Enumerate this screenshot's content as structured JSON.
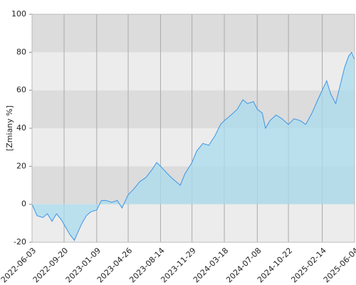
{
  "chart_data": {
    "type": "area",
    "y_label": "[Zmiany %]",
    "x": [
      "2022-06-03",
      "2022-06-20",
      "2022-07-10",
      "2022-07-25",
      "2022-08-10",
      "2022-08-25",
      "2022-09-10",
      "2022-09-25",
      "2022-10-10",
      "2022-10-25",
      "2022-11-05",
      "2022-11-20",
      "2022-12-05",
      "2022-12-20",
      "2023-01-09",
      "2023-01-25",
      "2023-02-10",
      "2023-03-01",
      "2023-03-20",
      "2023-04-05",
      "2023-04-26",
      "2023-05-15",
      "2023-06-05",
      "2023-06-25",
      "2023-07-15",
      "2023-08-01",
      "2023-08-14",
      "2023-09-01",
      "2023-09-20",
      "2023-10-05",
      "2023-10-20",
      "2023-11-05",
      "2023-11-29",
      "2023-12-15",
      "2024-01-05",
      "2024-01-25",
      "2024-02-15",
      "2024-03-05",
      "2024-03-18",
      "2024-04-10",
      "2024-05-01",
      "2024-05-20",
      "2024-06-05",
      "2024-06-25",
      "2024-07-08",
      "2024-07-25",
      "2024-08-05",
      "2024-08-20",
      "2024-09-10",
      "2024-09-30",
      "2024-10-22",
      "2024-11-10",
      "2024-12-01",
      "2024-12-20",
      "2025-01-10",
      "2025-01-30",
      "2025-02-14",
      "2025-03-01",
      "2025-03-15",
      "2025-04-01",
      "2025-04-15",
      "2025-05-01",
      "2025-05-15",
      "2025-05-25",
      "2025-06-04"
    ],
    "values": [
      0,
      -6,
      -7,
      -5,
      -9,
      -5,
      -8,
      -12,
      -16,
      -19,
      -15,
      -10,
      -6,
      -4,
      -3,
      2,
      2,
      1,
      2,
      -2,
      5,
      8,
      12,
      14,
      18,
      22,
      20,
      17,
      14,
      12,
      10,
      16,
      22,
      28,
      32,
      31,
      36,
      42,
      44,
      47,
      50,
      55,
      53,
      54,
      50,
      48,
      40,
      44,
      47,
      45,
      42,
      45,
      44,
      42,
      48,
      55,
      60,
      65,
      58,
      53,
      62,
      72,
      78,
      80,
      76
    ],
    "color": "#3d94e6",
    "fill": "#a9dcef",
    "xlim": [
      "2022-06-03",
      "2025-06-04"
    ],
    "xticks": [
      "2022-06-03",
      "2022-09-20",
      "2023-01-09",
      "2023-04-26",
      "2023-08-14",
      "2023-11-29",
      "2024-03-18",
      "2024-07-08",
      "2024-10-22",
      "2025-02-14",
      "2025-06-04"
    ],
    "ylim": [
      -20,
      100
    ],
    "yticks": [
      -20,
      0,
      20,
      40,
      60,
      80,
      100
    ],
    "band_colors": [
      "#ececec",
      "#dcdcdc"
    ],
    "grid": true
  }
}
